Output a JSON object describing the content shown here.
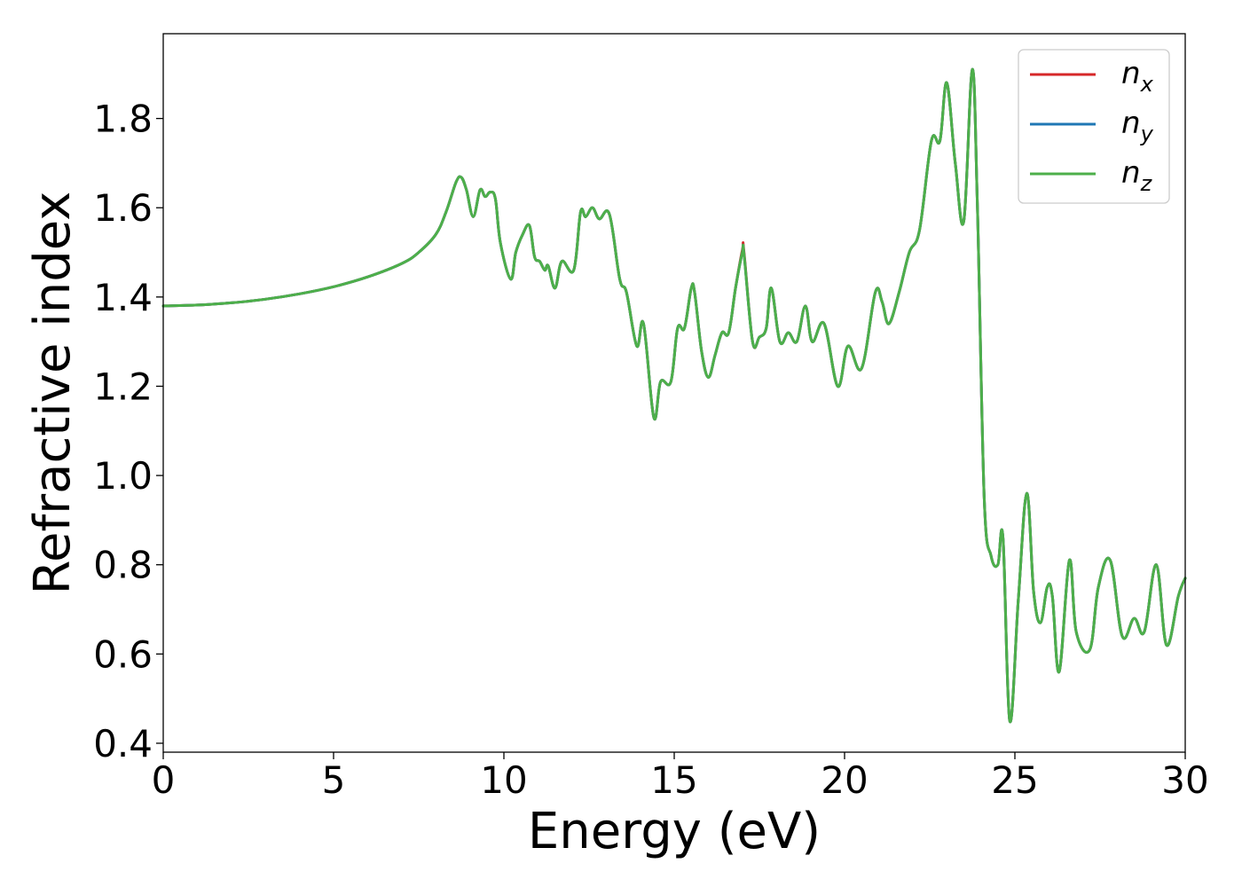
{
  "chart_data": {
    "type": "line",
    "xlabel": "Energy (eV)",
    "ylabel": "Refractive index",
    "xlim": [
      0,
      30
    ],
    "ylim": [
      0.38,
      1.99
    ],
    "xticks": [
      0,
      5,
      10,
      15,
      20,
      25,
      30
    ],
    "xtick_labels": [
      "0",
      "5",
      "10",
      "15",
      "20",
      "25",
      "30"
    ],
    "yticks": [
      0.4,
      0.6,
      0.8,
      1.0,
      1.2,
      1.4,
      1.6,
      1.8
    ],
    "ytick_labels": [
      "0.4",
      "0.6",
      "0.8",
      "1.0",
      "1.2",
      "1.4",
      "1.6",
      "1.8"
    ],
    "grid": false,
    "legend_position": "top-right",
    "series": [
      {
        "name": "n_x",
        "legend_main": "n",
        "legend_sub": "x",
        "color": "#d62728",
        "x": [
          0,
          1,
          2,
          3,
          4,
          5,
          6,
          7,
          7.5,
          8,
          8.3,
          8.6,
          8.75,
          8.9,
          9.1,
          9.3,
          9.45,
          9.6,
          9.75,
          9.9,
          10.2,
          10.35,
          10.55,
          10.75,
          10.9,
          11.05,
          11.2,
          11.3,
          11.5,
          11.7,
          12.05,
          12.25,
          12.4,
          12.6,
          12.8,
          13.1,
          13.4,
          13.6,
          13.9,
          14.1,
          14.4,
          14.6,
          14.9,
          15.1,
          15.3,
          15.5,
          15.6,
          15.8,
          16.0,
          16.2,
          16.4,
          16.6,
          16.8,
          17.0,
          17.05,
          17.3,
          17.5,
          17.7,
          17.85,
          18.1,
          18.35,
          18.6,
          18.85,
          19.05,
          19.4,
          19.8,
          20.1,
          20.5,
          20.9,
          21.1,
          21.3,
          21.6,
          21.9,
          22.2,
          22.55,
          22.8,
          23.0,
          23.25,
          23.5,
          23.75,
          23.9,
          24.1,
          24.3,
          24.5,
          24.65,
          24.85,
          25.1,
          25.35,
          25.55,
          25.75,
          25.95,
          26.1,
          26.3,
          26.6,
          26.8,
          27.2,
          27.45,
          27.8,
          28.15,
          28.5,
          28.8,
          29.15,
          29.45,
          29.8,
          30.0
        ],
        "y": [
          1.38,
          1.382,
          1.387,
          1.395,
          1.407,
          1.423,
          1.445,
          1.475,
          1.5,
          1.54,
          1.59,
          1.658,
          1.668,
          1.64,
          1.58,
          1.64,
          1.625,
          1.635,
          1.62,
          1.52,
          1.44,
          1.5,
          1.54,
          1.56,
          1.49,
          1.48,
          1.46,
          1.47,
          1.42,
          1.48,
          1.46,
          1.59,
          1.58,
          1.6,
          1.575,
          1.585,
          1.44,
          1.41,
          1.29,
          1.34,
          1.13,
          1.21,
          1.21,
          1.33,
          1.33,
          1.42,
          1.41,
          1.28,
          1.22,
          1.27,
          1.32,
          1.32,
          1.42,
          1.505,
          1.5,
          1.3,
          1.31,
          1.33,
          1.42,
          1.3,
          1.32,
          1.3,
          1.38,
          1.3,
          1.34,
          1.2,
          1.29,
          1.24,
          1.41,
          1.39,
          1.34,
          1.41,
          1.5,
          1.55,
          1.75,
          1.75,
          1.88,
          1.7,
          1.57,
          1.91,
          1.6,
          0.95,
          0.82,
          0.8,
          0.86,
          0.45,
          0.72,
          0.96,
          0.74,
          0.67,
          0.75,
          0.73,
          0.56,
          0.81,
          0.65,
          0.61,
          0.75,
          0.81,
          0.64,
          0.68,
          0.65,
          0.8,
          0.62,
          0.73,
          0.77
        ]
      },
      {
        "name": "n_y",
        "legend_main": "n",
        "legend_sub": "y",
        "color": "#1f77b4",
        "x": [
          0,
          1,
          2,
          3,
          4,
          5,
          6,
          7,
          7.5,
          8,
          8.3,
          8.6,
          8.75,
          8.9,
          9.1,
          9.3,
          9.45,
          9.6,
          9.75,
          9.9,
          10.2,
          10.35,
          10.55,
          10.75,
          10.9,
          11.05,
          11.2,
          11.3,
          11.5,
          11.7,
          12.05,
          12.25,
          12.4,
          12.6,
          12.8,
          13.1,
          13.4,
          13.6,
          13.9,
          14.1,
          14.4,
          14.6,
          14.9,
          15.1,
          15.3,
          15.5,
          15.6,
          15.8,
          16.0,
          16.2,
          16.4,
          16.6,
          16.8,
          17.0,
          17.05,
          17.3,
          17.5,
          17.7,
          17.85,
          18.1,
          18.35,
          18.6,
          18.85,
          19.05,
          19.4,
          19.8,
          20.1,
          20.5,
          20.9,
          21.1,
          21.3,
          21.6,
          21.9,
          22.2,
          22.55,
          22.8,
          23.0,
          23.25,
          23.5,
          23.75,
          23.9,
          24.1,
          24.3,
          24.5,
          24.65,
          24.85,
          25.1,
          25.35,
          25.55,
          25.75,
          25.95,
          26.1,
          26.3,
          26.6,
          26.8,
          27.2,
          27.45,
          27.8,
          28.15,
          28.5,
          28.8,
          29.15,
          29.45,
          29.8,
          30.0
        ],
        "y": [
          1.38,
          1.382,
          1.387,
          1.395,
          1.407,
          1.423,
          1.445,
          1.475,
          1.5,
          1.54,
          1.59,
          1.658,
          1.668,
          1.64,
          1.58,
          1.64,
          1.625,
          1.635,
          1.62,
          1.52,
          1.44,
          1.5,
          1.54,
          1.56,
          1.49,
          1.48,
          1.46,
          1.47,
          1.42,
          1.48,
          1.46,
          1.59,
          1.58,
          1.6,
          1.575,
          1.585,
          1.44,
          1.41,
          1.29,
          1.34,
          1.13,
          1.21,
          1.21,
          1.33,
          1.33,
          1.42,
          1.41,
          1.28,
          1.22,
          1.27,
          1.32,
          1.32,
          1.42,
          1.5,
          1.495,
          1.3,
          1.31,
          1.33,
          1.42,
          1.3,
          1.32,
          1.3,
          1.38,
          1.3,
          1.34,
          1.2,
          1.29,
          1.24,
          1.41,
          1.39,
          1.34,
          1.41,
          1.5,
          1.55,
          1.75,
          1.75,
          1.88,
          1.7,
          1.57,
          1.91,
          1.6,
          0.95,
          0.82,
          0.8,
          0.86,
          0.45,
          0.72,
          0.96,
          0.74,
          0.67,
          0.75,
          0.73,
          0.56,
          0.81,
          0.65,
          0.61,
          0.75,
          0.81,
          0.64,
          0.68,
          0.65,
          0.8,
          0.62,
          0.73,
          0.77
        ]
      },
      {
        "name": "n_z",
        "legend_main": "n",
        "legend_sub": "z",
        "color": "#4daf4a",
        "x": [
          0,
          1,
          2,
          3,
          4,
          5,
          6,
          7,
          7.5,
          8,
          8.3,
          8.6,
          8.75,
          8.9,
          9.1,
          9.3,
          9.45,
          9.6,
          9.75,
          9.9,
          10.2,
          10.35,
          10.55,
          10.75,
          10.9,
          11.05,
          11.2,
          11.3,
          11.5,
          11.7,
          12.05,
          12.25,
          12.4,
          12.6,
          12.8,
          13.1,
          13.4,
          13.6,
          13.9,
          14.1,
          14.4,
          14.6,
          14.9,
          15.1,
          15.3,
          15.5,
          15.6,
          15.8,
          16.0,
          16.2,
          16.4,
          16.6,
          16.8,
          17.0,
          17.05,
          17.3,
          17.5,
          17.7,
          17.85,
          18.1,
          18.35,
          18.6,
          18.85,
          19.05,
          19.4,
          19.8,
          20.1,
          20.5,
          20.9,
          21.1,
          21.3,
          21.6,
          21.9,
          22.2,
          22.55,
          22.8,
          23.0,
          23.25,
          23.5,
          23.75,
          23.9,
          24.1,
          24.3,
          24.5,
          24.65,
          24.85,
          25.1,
          25.35,
          25.55,
          25.75,
          25.95,
          26.1,
          26.3,
          26.6,
          26.8,
          27.2,
          27.45,
          27.8,
          28.15,
          28.5,
          28.8,
          29.15,
          29.45,
          29.8,
          30.0
        ],
        "y": [
          1.38,
          1.382,
          1.387,
          1.395,
          1.407,
          1.423,
          1.445,
          1.475,
          1.5,
          1.54,
          1.59,
          1.658,
          1.668,
          1.64,
          1.58,
          1.64,
          1.625,
          1.635,
          1.62,
          1.52,
          1.44,
          1.5,
          1.54,
          1.56,
          1.49,
          1.48,
          1.46,
          1.47,
          1.42,
          1.48,
          1.46,
          1.59,
          1.58,
          1.6,
          1.575,
          1.585,
          1.44,
          1.41,
          1.29,
          1.34,
          1.13,
          1.21,
          1.21,
          1.33,
          1.33,
          1.42,
          1.41,
          1.28,
          1.22,
          1.27,
          1.32,
          1.32,
          1.42,
          1.5,
          1.495,
          1.3,
          1.31,
          1.33,
          1.42,
          1.3,
          1.32,
          1.3,
          1.38,
          1.3,
          1.34,
          1.2,
          1.29,
          1.24,
          1.41,
          1.39,
          1.34,
          1.41,
          1.5,
          1.55,
          1.75,
          1.75,
          1.88,
          1.7,
          1.57,
          1.91,
          1.6,
          0.95,
          0.82,
          0.8,
          0.86,
          0.45,
          0.72,
          0.96,
          0.74,
          0.67,
          0.75,
          0.73,
          0.56,
          0.81,
          0.65,
          0.61,
          0.75,
          0.81,
          0.64,
          0.68,
          0.65,
          0.8,
          0.62,
          0.73,
          0.77
        ]
      }
    ]
  }
}
